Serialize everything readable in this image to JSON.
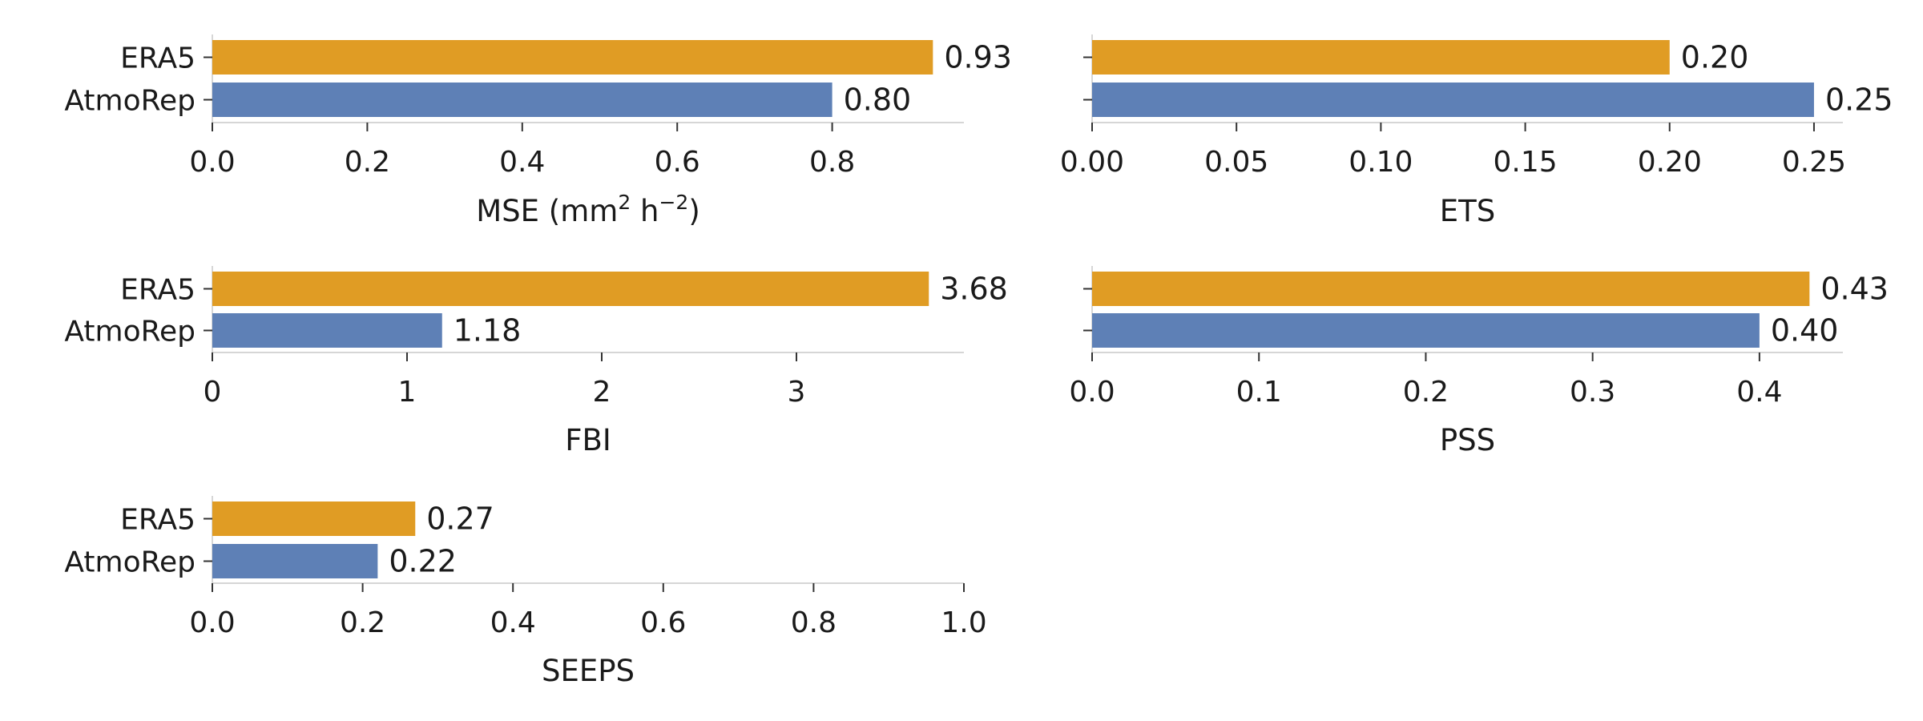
{
  "colors": {
    "ERA5": "#E09C24",
    "AtmoRep": "#5E80B6",
    "axis": "#c8c8c8",
    "tick": "#333333"
  },
  "chart_data": [
    {
      "type": "bar",
      "orientation": "horizontal",
      "categories": [
        "ERA5",
        "AtmoRep"
      ],
      "values": [
        0.93,
        0.8
      ],
      "value_labels": [
        "0.93",
        "0.80"
      ],
      "xlim": [
        0,
        0.97
      ],
      "xticks": [
        0,
        0.2,
        0.4,
        0.6,
        0.8
      ],
      "xtick_labels": [
        "0.0",
        "0.2",
        "0.4",
        "0.6",
        "0.8"
      ],
      "xlabel": "MSE (mm",
      "xlabel_sup1": "2",
      "xlabel_mid": " h",
      "xlabel_sup2": "−2",
      "xlabel_end": ")",
      "show_category_labels": true
    },
    {
      "type": "bar",
      "orientation": "horizontal",
      "categories": [
        "ERA5",
        "AtmoRep"
      ],
      "values": [
        0.2,
        0.25
      ],
      "value_labels": [
        "0.20",
        "0.25"
      ],
      "xlim": [
        0,
        0.26
      ],
      "xticks": [
        0,
        0.05,
        0.1,
        0.15,
        0.2,
        0.25
      ],
      "xtick_labels": [
        "0.00",
        "0.05",
        "0.10",
        "0.15",
        "0.20",
        "0.25"
      ],
      "xlabel": "ETS",
      "show_category_labels": false
    },
    {
      "type": "bar",
      "orientation": "horizontal",
      "categories": [
        "ERA5",
        "AtmoRep"
      ],
      "values": [
        3.68,
        1.18
      ],
      "value_labels": [
        "3.68",
        "1.18"
      ],
      "xlim": [
        0,
        3.86
      ],
      "xticks": [
        0,
        1,
        2,
        3
      ],
      "xtick_labels": [
        "0",
        "1",
        "2",
        "3"
      ],
      "xlabel": "FBI",
      "show_category_labels": true
    },
    {
      "type": "bar",
      "orientation": "horizontal",
      "categories": [
        "ERA5",
        "AtmoRep"
      ],
      "values": [
        0.43,
        0.4
      ],
      "value_labels": [
        "0.43",
        "0.40"
      ],
      "xlim": [
        0,
        0.45
      ],
      "xticks": [
        0,
        0.1,
        0.2,
        0.3,
        0.4
      ],
      "xtick_labels": [
        "0.0",
        "0.1",
        "0.2",
        "0.3",
        "0.4"
      ],
      "xlabel": "PSS",
      "show_category_labels": false
    },
    {
      "type": "bar",
      "orientation": "horizontal",
      "categories": [
        "ERA5",
        "AtmoRep"
      ],
      "values": [
        0.27,
        0.22
      ],
      "value_labels": [
        "0.27",
        "0.22"
      ],
      "xlim": [
        0,
        1.0
      ],
      "xticks": [
        0,
        0.2,
        0.4,
        0.6,
        0.8,
        1.0
      ],
      "xtick_labels": [
        "0.0",
        "0.2",
        "0.4",
        "0.6",
        "0.8",
        "1.0"
      ],
      "xlabel": "SEEPS",
      "show_category_labels": true
    }
  ]
}
